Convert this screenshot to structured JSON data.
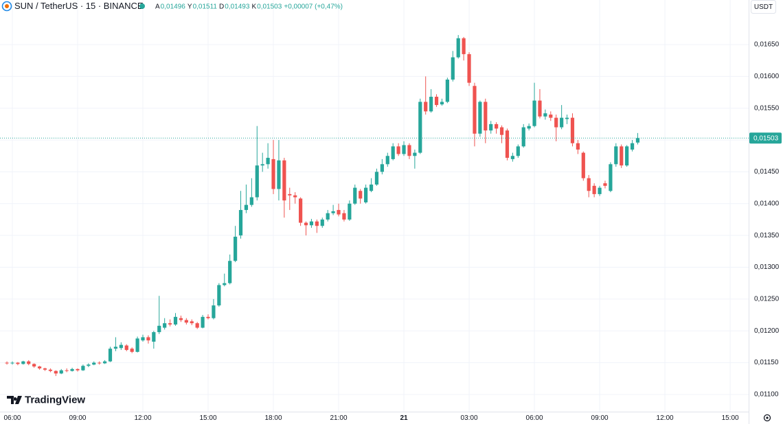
{
  "chart_data": {
    "type": "candlestick",
    "title": "SUN / TetherUS · 15 · BINANCE",
    "ohlc_legend": [
      {
        "label": "A",
        "value": "0,01496"
      },
      {
        "label": "Y",
        "value": "0,01511"
      },
      {
        "label": "D",
        "value": "0,01493"
      },
      {
        "label": "K",
        "value": "0,01503"
      }
    ],
    "change": "+0,00007 (+0,47%)",
    "currency": "USDT",
    "watermark": "TradingView",
    "up_color": "#26a69a",
    "down_color": "#ef5350",
    "grid": true,
    "x": [
      5.75,
      6,
      6.25,
      6.5,
      6.75,
      7,
      7.25,
      7.5,
      7.75,
      8,
      8.25,
      8.5,
      8.75,
      9,
      9.25,
      9.5,
      9.75,
      10,
      10.25,
      10.5,
      10.75,
      11,
      11.25,
      11.5,
      11.75,
      12,
      12.25,
      12.5,
      12.75,
      13,
      13.25,
      13.5,
      13.75,
      14,
      14.25,
      14.5,
      14.75,
      15,
      15.25,
      15.5,
      15.75,
      16,
      16.25,
      16.5,
      16.75,
      17,
      17.25,
      17.5,
      17.75,
      18,
      18.25,
      18.5,
      18.75,
      19,
      19.25,
      19.5,
      19.75,
      20,
      20.25,
      20.5,
      20.75,
      21,
      21.25,
      21.5,
      21.75,
      22,
      22.25,
      22.5,
      22.75,
      23,
      23.25,
      23.5,
      23.75,
      24,
      24.25,
      24.5,
      24.75,
      25,
      25.25,
      25.5,
      25.75,
      26,
      26.25,
      26.5,
      26.75,
      27,
      27.25,
      27.5,
      27.75,
      28,
      28.25,
      28.5,
      28.75,
      29,
      29.25,
      29.5,
      29.75,
      30,
      30.25,
      30.5,
      30.75,
      31,
      31.25,
      31.5,
      31.75,
      32,
      32.25,
      32.5,
      32.75,
      33,
      33.25,
      33.5,
      33.75,
      34,
      34.25,
      34.5,
      34.75
    ],
    "open": [
      0.0115,
      0.01149,
      0.0115,
      0.01148,
      0.01152,
      0.01148,
      0.01144,
      0.01141,
      0.01139,
      0.01137,
      0.01133,
      0.01138,
      0.01137,
      0.0114,
      0.01138,
      0.01145,
      0.01147,
      0.0115,
      0.01149,
      0.01152,
      0.01172,
      0.01173,
      0.01177,
      0.01172,
      0.01167,
      0.01185,
      0.0119,
      0.01183,
      0.01198,
      0.01205,
      0.01212,
      0.0121,
      0.0122,
      0.01217,
      0.01215,
      0.01212,
      0.01205,
      0.01222,
      0.0122,
      0.0124,
      0.01272,
      0.01275,
      0.0131,
      0.0135,
      0.0139,
      0.01398,
      0.0141,
      0.0146,
      0.01462,
      0.0147,
      0.01423,
      0.01468,
      0.01415,
      0.01413,
      0.01408,
      0.0137,
      0.01366,
      0.01372,
      0.01365,
      0.01375,
      0.01385,
      0.0139,
      0.01385,
      0.01375,
      0.014,
      0.0142,
      0.01402,
      0.0142,
      0.0143,
      0.0145,
      0.01462,
      0.0147,
      0.0149,
      0.01478,
      0.01492,
      0.01475,
      0.0148,
      0.0156,
      0.01545,
      0.01568,
      0.01556,
      0.0156,
      0.01595,
      0.0163,
      0.0166,
      0.01635,
      0.01585,
      0.0151,
      0.0156,
      0.01515,
      0.01525,
      0.0152,
      0.01515,
      0.0147,
      0.01475,
      0.0149,
      0.01518,
      0.01522,
      0.01562,
      0.01537,
      0.0154,
      0.01535,
      0.0152,
      0.01533,
      0.01535,
      0.01495,
      0.0148,
      0.0144,
      0.01428,
      0.01415,
      0.01432,
      0.0142,
      0.01462,
      0.0149,
      0.0146,
      0.01485,
      0.01496
    ],
    "high": [
      0.01152,
      0.01152,
      0.01151,
      0.01153,
      0.01154,
      0.01149,
      0.01145,
      0.01142,
      0.01141,
      0.01138,
      0.0114,
      0.01141,
      0.01142,
      0.01141,
      0.01147,
      0.01149,
      0.01152,
      0.01152,
      0.01154,
      0.01175,
      0.0119,
      0.01182,
      0.01179,
      0.01174,
      0.01191,
      0.01194,
      0.01193,
      0.012,
      0.01255,
      0.0122,
      0.01218,
      0.01228,
      0.01224,
      0.0122,
      0.01218,
      0.01214,
      0.01225,
      0.01226,
      0.0125,
      0.01275,
      0.0129,
      0.0132,
      0.01365,
      0.0142,
      0.0143,
      0.0144,
      0.01522,
      0.0148,
      0.01495,
      0.015,
      0.015,
      0.01472,
      0.01425,
      0.01418,
      0.0141,
      0.01372,
      0.01376,
      0.01375,
      0.01378,
      0.0139,
      0.01398,
      0.014,
      0.0139,
      0.01405,
      0.0143,
      0.01423,
      0.0143,
      0.0144,
      0.01455,
      0.0147,
      0.0148,
      0.01495,
      0.01495,
      0.01498,
      0.01495,
      0.01485,
      0.01565,
      0.016,
      0.0158,
      0.01572,
      0.01565,
      0.01598,
      0.0164,
      0.01665,
      0.01662,
      0.01638,
      0.0159,
      0.01562,
      0.01565,
      0.0153,
      0.01528,
      0.01523,
      0.01518,
      0.0148,
      0.01493,
      0.01525,
      0.01526,
      0.0159,
      0.0158,
      0.01548,
      0.01545,
      0.0154,
      0.01555,
      0.0154,
      0.01542,
      0.015,
      0.01482,
      0.01445,
      0.01432,
      0.01428,
      0.01436,
      0.01465,
      0.01495,
      0.01493,
      0.01492,
      0.015,
      0.01511
    ],
    "low": [
      0.01147,
      0.01147,
      0.01146,
      0.01147,
      0.01146,
      0.01142,
      0.01139,
      0.01137,
      0.01135,
      0.01129,
      0.01132,
      0.01135,
      0.01136,
      0.01136,
      0.01137,
      0.01143,
      0.01146,
      0.01147,
      0.01148,
      0.01151,
      0.01168,
      0.0117,
      0.01168,
      0.01165,
      0.01166,
      0.01183,
      0.0118,
      0.01172,
      0.01195,
      0.01202,
      0.01207,
      0.01208,
      0.01214,
      0.0121,
      0.01209,
      0.01203,
      0.01204,
      0.01218,
      0.01218,
      0.01238,
      0.0127,
      0.01273,
      0.01308,
      0.01345,
      0.01385,
      0.01395,
      0.01405,
      0.0145,
      0.01455,
      0.01415,
      0.01405,
      0.01378,
      0.0139,
      0.014,
      0.01365,
      0.0135,
      0.01362,
      0.01354,
      0.01362,
      0.01372,
      0.01382,
      0.0138,
      0.01372,
      0.01373,
      0.01398,
      0.014,
      0.014,
      0.01418,
      0.01428,
      0.01446,
      0.01458,
      0.01468,
      0.01475,
      0.01475,
      0.0147,
      0.01455,
      0.01478,
      0.0154,
      0.01543,
      0.01552,
      0.01554,
      0.01558,
      0.01592,
      0.01628,
      0.01625,
      0.01585,
      0.0149,
      0.01505,
      0.01495,
      0.0151,
      0.0151,
      0.01495,
      0.01468,
      0.01466,
      0.01472,
      0.01488,
      0.01515,
      0.0152,
      0.01534,
      0.01532,
      0.0153,
      0.01498,
      0.01517,
      0.01525,
      0.0149,
      0.01478,
      0.01436,
      0.0141,
      0.0141,
      0.01412,
      0.01424,
      0.01418,
      0.01458,
      0.01456,
      0.01458,
      0.01482,
      0.01493
    ],
    "close": [
      0.01149,
      0.0115,
      0.01148,
      0.01152,
      0.01148,
      0.01144,
      0.01141,
      0.01139,
      0.01137,
      0.01133,
      0.01138,
      0.01137,
      0.0114,
      0.01138,
      0.01145,
      0.01147,
      0.0115,
      0.01149,
      0.01152,
      0.01172,
      0.01175,
      0.01178,
      0.0117,
      0.01167,
      0.01188,
      0.0119,
      0.01185,
      0.01198,
      0.01208,
      0.01212,
      0.0121,
      0.01222,
      0.01217,
      0.01213,
      0.01212,
      0.01205,
      0.01222,
      0.0122,
      0.0124,
      0.01272,
      0.01275,
      0.0131,
      0.01348,
      0.0139,
      0.01398,
      0.0141,
      0.0146,
      0.01462,
      0.01472,
      0.01423,
      0.01468,
      0.01405,
      0.01413,
      0.0141,
      0.0137,
      0.01366,
      0.01372,
      0.01365,
      0.01375,
      0.01385,
      0.01388,
      0.01383,
      0.01375,
      0.014,
      0.01425,
      0.01408,
      0.01425,
      0.0143,
      0.0145,
      0.01462,
      0.01475,
      0.0149,
      0.01478,
      0.01492,
      0.01475,
      0.0148,
      0.0156,
      0.01545,
      0.01568,
      0.01555,
      0.0156,
      0.01595,
      0.0163,
      0.0166,
      0.01635,
      0.0159,
      0.0151,
      0.0156,
      0.01515,
      0.01525,
      0.01518,
      0.01508,
      0.01472,
      0.01475,
      0.0149,
      0.0152,
      0.01522,
      0.01562,
      0.01537,
      0.01542,
      0.01535,
      0.0152,
      0.01535,
      0.01535,
      0.01495,
      0.01485,
      0.0144,
      0.0142,
      0.01415,
      0.01425,
      0.01428,
      0.01462,
      0.0149,
      0.0146,
      0.0149,
      0.01495,
      0.01503
    ],
    "last_price": {
      "value": 0.01503,
      "label": "0,01503"
    },
    "xlim": [
      5.432,
      39.85
    ],
    "xticks": [
      {
        "value": 6,
        "label": "06:00"
      },
      {
        "value": 9,
        "label": "09:00"
      },
      {
        "value": 12,
        "label": "12:00"
      },
      {
        "value": 15,
        "label": "15:00"
      },
      {
        "value": 18,
        "label": "18:00"
      },
      {
        "value": 21,
        "label": "21:00"
      },
      {
        "value": 24,
        "label": "21"
      },
      {
        "value": 27,
        "label": "03:00"
      },
      {
        "value": 30,
        "label": "06:00"
      },
      {
        "value": 33,
        "label": "09:00"
      },
      {
        "value": 36,
        "label": "12:00"
      },
      {
        "value": 39,
        "label": "15:00"
      }
    ],
    "ylim": [
      0.01073,
      0.017201
    ],
    "yticks": [
      {
        "value": 0.011,
        "label": "0,01100"
      },
      {
        "value": 0.0115,
        "label": "0,01150"
      },
      {
        "value": 0.012,
        "label": "0,01200"
      },
      {
        "value": 0.0125,
        "label": "0,01250"
      },
      {
        "value": 0.013,
        "label": "0,01300"
      },
      {
        "value": 0.0135,
        "label": "0,01350"
      },
      {
        "value": 0.014,
        "label": "0,01400"
      },
      {
        "value": 0.0145,
        "label": "0,01450"
      },
      {
        "value": 0.015,
        "label": "0,01500"
      },
      {
        "value": 0.0155,
        "label": "0,01550"
      },
      {
        "value": 0.016,
        "label": "0,01600"
      },
      {
        "value": 0.0165,
        "label": "0,01650"
      }
    ]
  }
}
